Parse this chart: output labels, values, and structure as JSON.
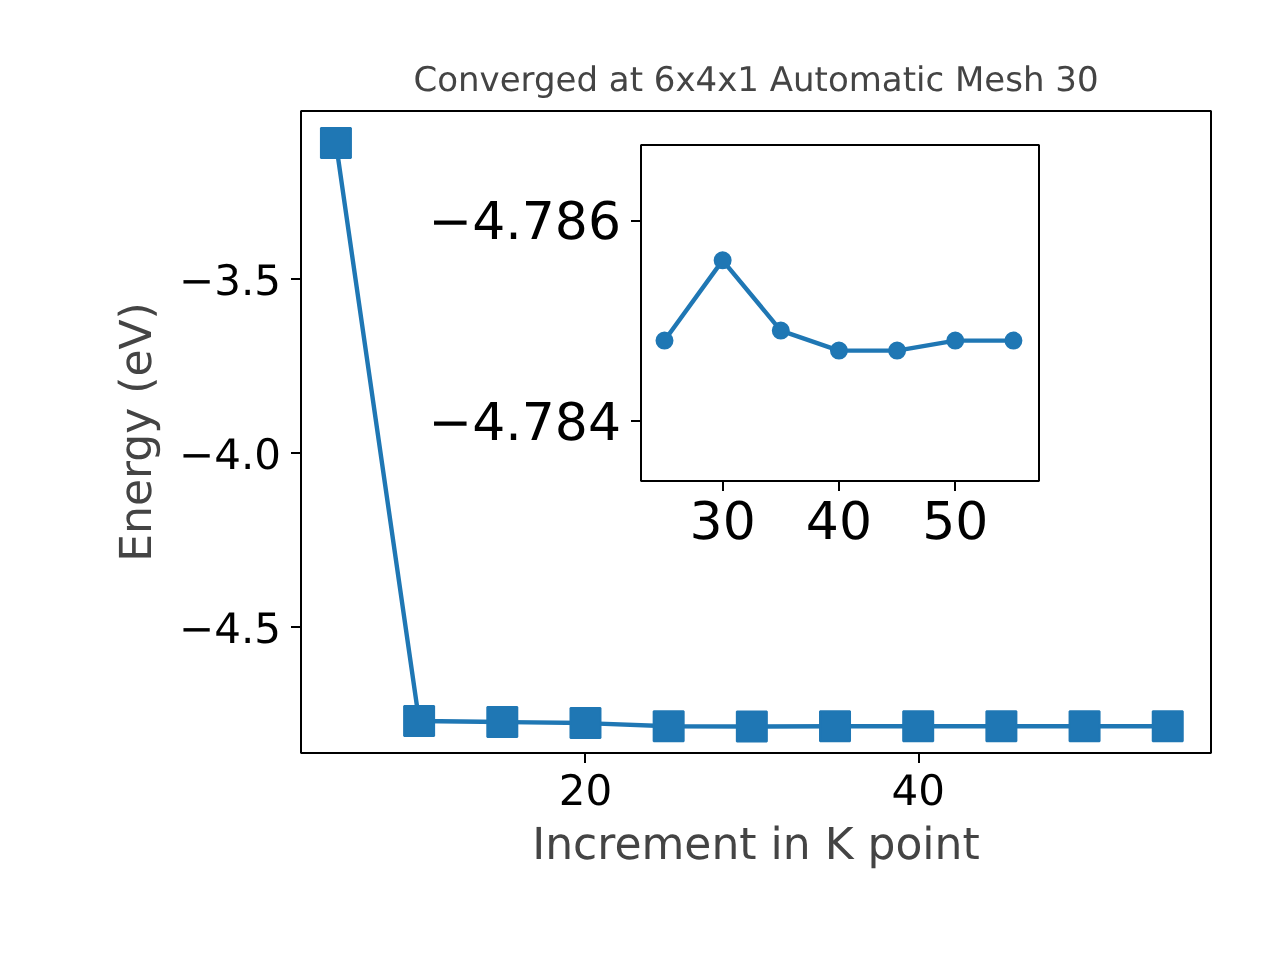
{
  "chart_data": [
    {
      "type": "line",
      "title": "Converged at 6x4x1 Automatic Mesh 30",
      "xlabel": "Increment in K point",
      "ylabel": "Energy (eV)",
      "color": "#1f77b4",
      "marker": "square",
      "line_style": "solid",
      "x": [
        5,
        10,
        15,
        20,
        25,
        30,
        35,
        40,
        45,
        50,
        55
      ],
      "values": [
        -3.109,
        -4.77,
        -4.773,
        -4.776,
        -4.785,
        -4.786,
        -4.785,
        -4.785,
        -4.785,
        -4.785,
        -4.785
      ],
      "xlim": [
        2.9,
        57.6
      ],
      "ylim": [
        -4.862,
        -3.017
      ],
      "xticks": [
        20,
        40
      ],
      "yticks": [
        {
          "value": -4.5,
          "label": "−4.5"
        },
        {
          "value": -4.0,
          "label": "−4.0"
        },
        {
          "value": -3.5,
          "label": "−3.5"
        }
      ]
    },
    {
      "type": "line",
      "color": "#1f77b4",
      "marker": "circle",
      "line_style": "solid",
      "x": [
        25,
        30,
        35,
        40,
        45,
        50,
        55
      ],
      "values": [
        -4.7848,
        -4.7856,
        -4.7849,
        -4.7847,
        -4.7847,
        -4.7848,
        -4.7848
      ],
      "xlim": [
        22.98,
        57.2
      ],
      "ylim": [
        -4.7834,
        -4.78675
      ],
      "xticks": [
        30,
        40,
        50
      ],
      "yticks": [
        {
          "value": -4.784,
          "label": "−4.784"
        },
        {
          "value": -4.786,
          "label": "−4.786"
        }
      ]
    }
  ]
}
